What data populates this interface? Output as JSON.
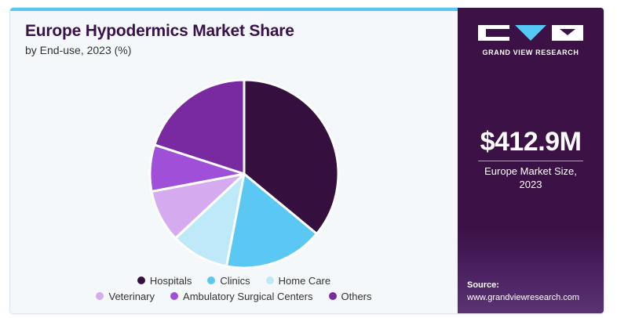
{
  "header": {
    "title": "Europe Hypodermics Market Share",
    "subtitle": "by End-use, 2023 (%)"
  },
  "chart_data": {
    "type": "pie",
    "title": "Europe Hypodermics Market Share",
    "subtitle": "by End-use, 2023 (%)",
    "categories": [
      "Hospitals",
      "Clinics",
      "Home Care",
      "Veterinary",
      "Ambulatory Surgical Centers",
      "Others"
    ],
    "values": [
      36,
      17,
      10,
      9,
      8,
      20
    ],
    "colors": [
      "#35103f",
      "#5bc8f4",
      "#bde9f9",
      "#d5aaee",
      "#a04fd8",
      "#7a2aa0"
    ],
    "legend_position": "bottom"
  },
  "legend": {
    "row1": [
      {
        "label": "Hospitals",
        "color": "#35103f"
      },
      {
        "label": "Clinics",
        "color": "#5bc8f4"
      },
      {
        "label": "Home Care",
        "color": "#bde9f9"
      }
    ],
    "row2": [
      {
        "label": "Veterinary",
        "color": "#d5aaee"
      },
      {
        "label": "Ambulatory Surgical Centers",
        "color": "#a04fd8"
      },
      {
        "label": "Others",
        "color": "#7a2aa0"
      }
    ]
  },
  "sidebar": {
    "brand": "GRAND VIEW RESEARCH",
    "market_size": "$412.9M",
    "market_label": "Europe  Market Size,\n2023",
    "source_label": "Source:",
    "source_url": "www.grandviewresearch.com",
    "background_color": "#3b1146",
    "accent_color": "#54c9f6"
  }
}
